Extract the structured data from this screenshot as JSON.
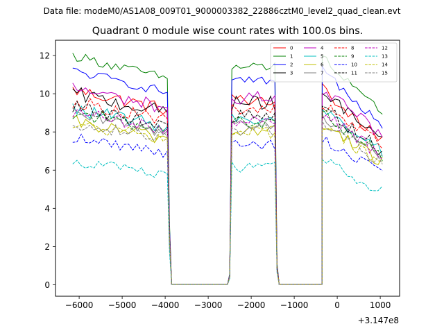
{
  "chart_data": {
    "type": "line",
    "suptitle": "Data file: modeM0/AS1A08_009T01_9000003382_22886cztM0_level2_quad_clean.evt",
    "title": "Quadrant 0 module wise count rates with 100.0s bins.",
    "xlabel": "",
    "ylabel": "",
    "x_offset_label": "+3.147e8",
    "xlim": [
      -6550,
      1450
    ],
    "ylim": [
      -0.6,
      12.8
    ],
    "xticks": [
      -6000,
      -5000,
      -4000,
      -3000,
      -2000,
      -1000,
      0,
      1000
    ],
    "xtick_labels": [
      "−6000",
      "−5000",
      "−4000",
      "−3000",
      "−2000",
      "−1000",
      "0",
      "1000"
    ],
    "yticks": [
      0,
      2,
      4,
      6,
      8,
      10,
      12
    ],
    "ytick_labels": [
      "0",
      "2",
      "4",
      "6",
      "8",
      "10",
      "12"
    ],
    "grid": false,
    "legend_position": "top-right",
    "x_segments": [
      [
        -6150,
        -3950
      ],
      [
        -2450,
        -1450
      ],
      [
        -350,
        1050
      ]
    ],
    "gap_x": [
      -3850,
      -2550,
      -1350,
      -350
    ],
    "series": [
      {
        "name": "0",
        "color": "#ff0000",
        "dash": "solid",
        "base": 10.2,
        "noise": 0.35,
        "decay": 0.1
      },
      {
        "name": "1",
        "color": "#008000",
        "dash": "solid",
        "base": 12.0,
        "noise": 0.25,
        "decay": 0.1
      },
      {
        "name": "2",
        "color": "#0000ff",
        "dash": "solid",
        "base": 11.2,
        "noise": 0.25,
        "decay": 0.1
      },
      {
        "name": "3",
        "color": "#000000",
        "dash": "solid",
        "base": 10.0,
        "noise": 0.4,
        "decay": 0.1
      },
      {
        "name": "4",
        "color": "#bf00bf",
        "dash": "solid",
        "base": 10.3,
        "noise": 0.35,
        "decay": 0.1
      },
      {
        "name": "5",
        "color": "#00bfbf",
        "dash": "solid",
        "base": 9.2,
        "noise": 0.35,
        "decay": 0.1
      },
      {
        "name": "6",
        "color": "#bfbf00",
        "dash": "solid",
        "base": 8.5,
        "noise": 0.35,
        "decay": 0.1
      },
      {
        "name": "7",
        "color": "#808080",
        "dash": "solid",
        "base": 8.9,
        "noise": 0.35,
        "decay": 0.1
      },
      {
        "name": "8",
        "color": "#ff0000",
        "dash": "dashed",
        "base": 9.6,
        "noise": 0.35,
        "decay": 0.1
      },
      {
        "name": "9",
        "color": "#008000",
        "dash": "dashed",
        "base": 9.0,
        "noise": 0.35,
        "decay": 0.1
      },
      {
        "name": "10",
        "color": "#0000ff",
        "dash": "dashed",
        "base": 7.7,
        "noise": 0.3,
        "decay": 0.1
      },
      {
        "name": "11",
        "color": "#000000",
        "dash": "dashed",
        "base": 9.3,
        "noise": 0.35,
        "decay": 0.1
      },
      {
        "name": "12",
        "color": "#bf00bf",
        "dash": "dashed",
        "base": 9.0,
        "noise": 0.35,
        "decay": 0.1
      },
      {
        "name": "13",
        "color": "#00bfbf",
        "dash": "dashed",
        "base": 6.5,
        "noise": 0.3,
        "decay": 0.12
      },
      {
        "name": "14",
        "color": "#bfbf00",
        "dash": "dashed",
        "base": 8.4,
        "noise": 0.35,
        "decay": 0.1
      },
      {
        "name": "15",
        "color": "#808080",
        "dash": "dashed",
        "base": 8.5,
        "noise": 0.35,
        "decay": 0.1
      }
    ]
  }
}
